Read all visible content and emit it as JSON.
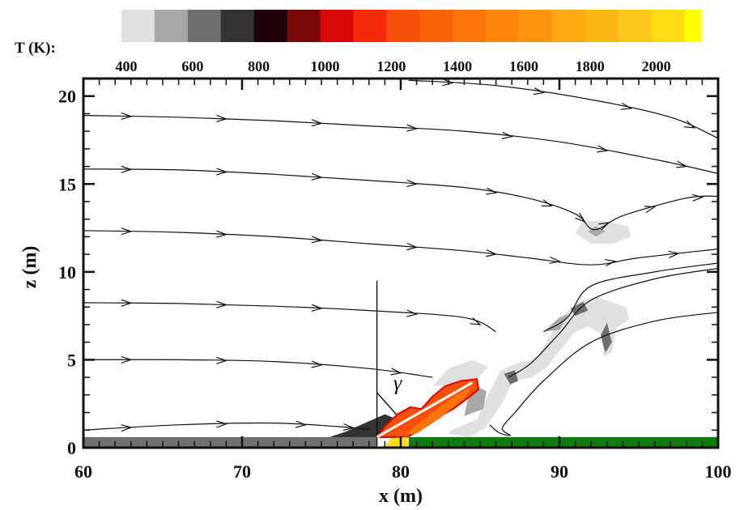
{
  "chart_data": {
    "type": "contour-streamline",
    "colorbar": {
      "title": "T (K):",
      "range": [
        400,
        2150
      ],
      "levels": [
        {
          "from": 400,
          "to": 500,
          "color": "#e0e0e0"
        },
        {
          "from": 500,
          "to": 600,
          "color": "#a8a8a8"
        },
        {
          "from": 600,
          "to": 700,
          "color": "#6e6e6e"
        },
        {
          "from": 700,
          "to": 800,
          "color": "#333333"
        },
        {
          "from": 800,
          "to": 900,
          "color": "#200008"
        },
        {
          "from": 900,
          "to": 1000,
          "color": "#7a0a0a"
        },
        {
          "from": 1000,
          "to": 1100,
          "color": "#d80808"
        },
        {
          "from": 1100,
          "to": 1200,
          "color": "#f42a0a"
        },
        {
          "from": 1200,
          "to": 1300,
          "color": "#f8500a"
        },
        {
          "from": 1300,
          "to": 1400,
          "color": "#fa620a"
        },
        {
          "from": 1400,
          "to": 1500,
          "color": "#fb740a"
        },
        {
          "from": 1500,
          "to": 1600,
          "color": "#fc860c"
        },
        {
          "from": 1600,
          "to": 1700,
          "color": "#fd960e"
        },
        {
          "from": 1700,
          "to": 1800,
          "color": "#fea812"
        },
        {
          "from": 1800,
          "to": 1900,
          "color": "#fdb818"
        },
        {
          "from": 1900,
          "to": 2000,
          "color": "#fec81e"
        },
        {
          "from": 2000,
          "to": 2100,
          "color": "#ffdc14"
        },
        {
          "from": 2100,
          "to": 2150,
          "color": "#ffff00"
        }
      ],
      "tick_labels": [
        "400",
        "600",
        "800",
        "1000",
        "1200",
        "1400",
        "1600",
        "1800",
        "2000"
      ],
      "tick_values": [
        400,
        600,
        800,
        1000,
        1200,
        1400,
        1600,
        1800,
        2000
      ]
    },
    "xlabel": "x (m)",
    "ylabel": "z (m)",
    "xlim": [
      60,
      100
    ],
    "ylim": [
      0,
      21
    ],
    "x_ticks": [
      60,
      70,
      80,
      90,
      100
    ],
    "x_tick_labels": [
      "60",
      "70",
      "80",
      "90",
      "100"
    ],
    "y_ticks": [
      0,
      5,
      10,
      15,
      20
    ],
    "y_tick_labels": [
      "0",
      "5",
      "10",
      "15",
      "20"
    ],
    "x_minor_step": 1,
    "y_minor_step": 1,
    "ground": [
      {
        "name": "burned-fuel",
        "x": [
          60,
          78.5
        ],
        "z": [
          0,
          0.6
        ],
        "color": "#707070"
      },
      {
        "name": "unburned-fuel",
        "x": [
          80.5,
          100
        ],
        "z": [
          0,
          0.6
        ],
        "color": "#0e7a10"
      }
    ],
    "streamlines": [
      {
        "points": [
          [
            60,
            1.0
          ],
          [
            66,
            1.3
          ],
          [
            72,
            1.4
          ],
          [
            76,
            1.2
          ],
          [
            78,
            1.05
          ]
        ]
      },
      {
        "points": [
          [
            60,
            5.0
          ],
          [
            66,
            5.0
          ],
          [
            72,
            4.9
          ],
          [
            78,
            4.5
          ],
          [
            82,
            4.0
          ]
        ]
      },
      {
        "points": [
          [
            60,
            8.25
          ],
          [
            66,
            8.2
          ],
          [
            72,
            8.05
          ],
          [
            78,
            7.8
          ],
          [
            84,
            7.4
          ],
          [
            86,
            6.6
          ]
        ]
      },
      {
        "points": [
          [
            60,
            12.35
          ],
          [
            66,
            12.25
          ],
          [
            72,
            12.0
          ],
          [
            78,
            11.6
          ],
          [
            84,
            11.2
          ],
          [
            88,
            10.8
          ],
          [
            92,
            10.4
          ],
          [
            95,
            10.8
          ],
          [
            100,
            11.3
          ]
        ]
      },
      {
        "points": [
          [
            60,
            15.85
          ],
          [
            66,
            15.8
          ],
          [
            72,
            15.55
          ],
          [
            78,
            15.2
          ],
          [
            84,
            14.8
          ],
          [
            88,
            14.2
          ],
          [
            91,
            13.3
          ],
          [
            92.2,
            12.4
          ],
          [
            94,
            13.2
          ],
          [
            98,
            14.2
          ],
          [
            100,
            14.3
          ]
        ]
      },
      {
        "points": [
          [
            60,
            18.9
          ],
          [
            66,
            18.8
          ],
          [
            72,
            18.6
          ],
          [
            78,
            18.3
          ],
          [
            84,
            18.0
          ],
          [
            90,
            17.4
          ],
          [
            96,
            16.4
          ],
          [
            100,
            15.6
          ]
        ]
      },
      {
        "points": [
          [
            80.5,
            20.9
          ],
          [
            86,
            20.6
          ],
          [
            92,
            19.8
          ],
          [
            97,
            18.8
          ],
          [
            100,
            17.6
          ]
        ]
      }
    ],
    "isotherm_patches": [
      {
        "level": "orange",
        "x": [
          79.2,
          84.8
        ],
        "z": [
          0.6,
          4.0
        ]
      },
      {
        "level": "dark",
        "x": [
          76,
          80
        ],
        "z": [
          0.6,
          2.0
        ]
      },
      {
        "level": "light-gray",
        "x": [
          83,
          94.5
        ],
        "z": [
          1.0,
          8.6
        ]
      },
      {
        "level": "light-gray",
        "x": [
          91,
          94.5
        ],
        "z": [
          11.5,
          12.9
        ]
      }
    ],
    "annotations": [
      {
        "text": "γ",
        "x": 79.8,
        "z": 3.3
      },
      {
        "type": "vertical-line",
        "x": 78.5,
        "z": [
          0.1,
          9.5
        ]
      },
      {
        "type": "flame-axis-line",
        "from": [
          78.5,
          0.6
        ],
        "to": [
          84.5,
          3.7
        ]
      }
    ]
  }
}
